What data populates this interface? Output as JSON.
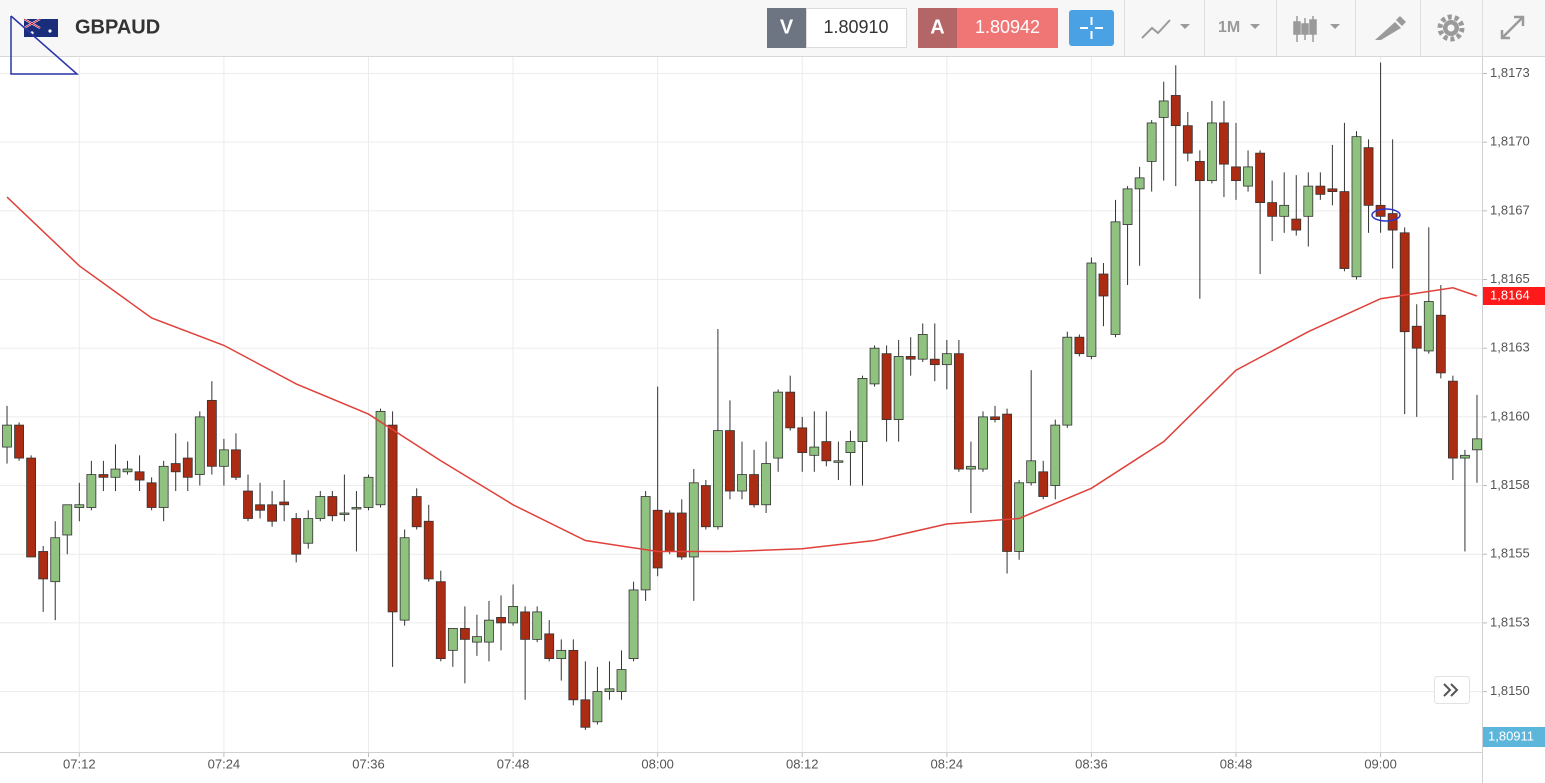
{
  "header": {
    "symbol": "GBPAUD",
    "sell_label": "V",
    "sell_price": "1.80910",
    "buy_label": "A",
    "buy_price": "1.80942",
    "timeframe": "1M"
  },
  "chart_data": {
    "type": "candlestick",
    "x": [
      "07:06",
      "07:07",
      "07:08",
      "07:09",
      "07:10",
      "07:11",
      "07:12",
      "07:13",
      "07:14",
      "07:15",
      "07:16",
      "07:17",
      "07:18",
      "07:19",
      "07:20",
      "07:21",
      "07:22",
      "07:23",
      "07:24",
      "07:25",
      "07:26",
      "07:27",
      "07:28",
      "07:29",
      "07:30",
      "07:31",
      "07:32",
      "07:33",
      "07:34",
      "07:35",
      "07:36",
      "07:37",
      "07:38",
      "07:39",
      "07:40",
      "07:41",
      "07:42",
      "07:43",
      "07:44",
      "07:45",
      "07:46",
      "07:47",
      "07:48",
      "07:49",
      "07:50",
      "07:51",
      "07:52",
      "07:53",
      "07:54",
      "07:55",
      "07:56",
      "07:57",
      "07:58",
      "07:59",
      "08:00",
      "08:01",
      "08:02",
      "08:03",
      "08:04",
      "08:05",
      "08:06",
      "08:07",
      "08:08",
      "08:09",
      "08:10",
      "08:11",
      "08:12",
      "08:13",
      "08:14",
      "08:15",
      "08:16",
      "08:17",
      "08:18",
      "08:19",
      "08:20",
      "08:21",
      "08:22",
      "08:23",
      "08:24",
      "08:25",
      "08:26",
      "08:27",
      "08:28",
      "08:29",
      "08:30",
      "08:31",
      "08:32",
      "08:33",
      "08:34",
      "08:35",
      "08:36",
      "08:37",
      "08:38",
      "08:39",
      "08:40",
      "08:41",
      "08:42",
      "08:43",
      "08:44",
      "08:45",
      "08:46",
      "08:47",
      "08:48",
      "08:49",
      "08:50",
      "08:51",
      "08:52",
      "08:53",
      "08:54",
      "08:55",
      "08:56",
      "08:57",
      "08:58",
      "08:59",
      "09:00",
      "09:01",
      "09:02",
      "09:03",
      "09:04",
      "09:05",
      "09:06",
      "09:07",
      "09:08"
    ],
    "open": [
      1.81589,
      1.81597,
      1.81585,
      1.81551,
      1.8154,
      1.81557,
      1.81567,
      1.81567,
      1.81579,
      1.81578,
      1.8158,
      1.8158,
      1.81576,
      1.81567,
      1.81583,
      1.81585,
      1.81579,
      1.81606,
      1.81582,
      1.81588,
      1.81573,
      1.81568,
      1.81568,
      1.81569,
      1.81563,
      1.81554,
      1.81563,
      1.81571,
      1.81565,
      1.81567,
      1.81567,
      1.81568,
      1.81597,
      1.81526,
      1.81571,
      1.81562,
      1.8154,
      1.81515,
      1.81523,
      1.81518,
      1.81518,
      1.81527,
      1.81525,
      1.81529,
      1.81519,
      1.81521,
      1.81512,
      1.81515,
      1.81497,
      1.81489,
      1.815,
      1.815,
      1.81512,
      1.81537,
      1.81566,
      1.81565,
      1.81565,
      1.81549,
      1.81575,
      1.8156,
      1.81595,
      1.81573,
      1.81579,
      1.81568,
      1.81585,
      1.81609,
      1.81596,
      1.81586,
      1.81591,
      1.81584,
      1.81587,
      1.81591,
      1.81612,
      1.81623,
      1.81599,
      1.81622,
      1.81621,
      1.81621,
      1.81619,
      1.81623,
      1.81581,
      1.81581,
      1.816,
      1.81601,
      1.81551,
      1.81576,
      1.8158,
      1.81575,
      1.81597,
      1.81629,
      1.81622,
      1.81652,
      1.8163,
      1.8167,
      1.81683,
      1.81693,
      1.81709,
      1.81717,
      1.81706,
      1.81693,
      1.81686,
      1.81707,
      1.81691,
      1.81684,
      1.81696,
      1.81678,
      1.81673,
      1.81672,
      1.81673,
      1.81684,
      1.81683,
      1.81682,
      1.81651,
      1.81698,
      1.81677,
      1.81674,
      1.81667,
      1.81633,
      1.81624,
      1.81637,
      1.81613,
      1.81585,
      1.81588
    ],
    "high": [
      1.81604,
      1.81598,
      1.81586,
      1.81553,
      1.81562,
      1.81568,
      1.81576,
      1.81584,
      1.81584,
      1.8159,
      1.81584,
      1.81586,
      1.81578,
      1.81584,
      1.81594,
      1.81591,
      1.81602,
      1.81613,
      1.81592,
      1.81594,
      1.81579,
      1.81576,
      1.81573,
      1.81577,
      1.81565,
      1.81566,
      1.81573,
      1.81573,
      1.81579,
      1.81573,
      1.81579,
      1.81603,
      1.81602,
      1.81559,
      1.81574,
      1.81568,
      1.81544,
      1.81523,
      1.81531,
      1.81528,
      1.81533,
      1.81535,
      1.81539,
      1.81531,
      1.81531,
      1.81526,
      1.81519,
      1.81519,
      1.81511,
      1.81509,
      1.81511,
      1.81515,
      1.8154,
      1.81573,
      1.81611,
      1.81566,
      1.8157,
      1.81581,
      1.81577,
      1.81632,
      1.81606,
      1.81591,
      1.81588,
      1.81591,
      1.8161,
      1.81615,
      1.816,
      1.81602,
      1.81602,
      1.81591,
      1.81595,
      1.81615,
      1.81626,
      1.81626,
      1.81628,
      1.81629,
      1.81634,
      1.81634,
      1.81628,
      1.81628,
      1.81591,
      1.81602,
      1.81604,
      1.81603,
      1.81577,
      1.81617,
      1.81584,
      1.81599,
      1.81631,
      1.8163,
      1.81658,
      1.81656,
      1.81679,
      1.81684,
      1.81691,
      1.81708,
      1.81722,
      1.81728,
      1.81711,
      1.81697,
      1.81715,
      1.81715,
      1.81707,
      1.81697,
      1.81697,
      1.81686,
      1.81689,
      1.81688,
      1.81689,
      1.81689,
      1.81699,
      1.81707,
      1.81704,
      1.81701,
      1.81729,
      1.81701,
      1.81669,
      1.81641,
      1.81669,
      1.81648,
      1.81615,
      1.81588,
      1.81608
    ],
    "low": [
      1.81583,
      1.81584,
      1.81549,
      1.81529,
      1.81526,
      1.8155,
      1.81562,
      1.81566,
      1.81573,
      1.81573,
      1.81579,
      1.81573,
      1.81566,
      1.81562,
      1.81573,
      1.81573,
      1.81575,
      1.81579,
      1.81575,
      1.81577,
      1.81562,
      1.81563,
      1.8156,
      1.81562,
      1.81547,
      1.81552,
      1.81562,
      1.81562,
      1.81562,
      1.81551,
      1.81566,
      1.81567,
      1.81509,
      1.81524,
      1.81559,
      1.8154,
      1.81511,
      1.81509,
      1.81503,
      1.81513,
      1.81511,
      1.81515,
      1.81524,
      1.81497,
      1.81518,
      1.81511,
      1.81504,
      1.81495,
      1.81486,
      1.81488,
      1.81497,
      1.81497,
      1.81511,
      1.81533,
      1.81542,
      1.8155,
      1.81548,
      1.81533,
      1.81559,
      1.81559,
      1.8157,
      1.8157,
      1.81567,
      1.81565,
      1.8158,
      1.81595,
      1.8158,
      1.8158,
      1.81582,
      1.81577,
      1.81575,
      1.81575,
      1.81611,
      1.81591,
      1.81591,
      1.81615,
      1.8162,
      1.81613,
      1.8161,
      1.8158,
      1.81565,
      1.8158,
      1.81598,
      1.81543,
      1.81548,
      1.81575,
      1.8157,
      1.8157,
      1.81596,
      1.81622,
      1.81621,
      1.81633,
      1.81629,
      1.81648,
      1.81655,
      1.81682,
      1.81686,
      1.81684,
      1.81693,
      1.81643,
      1.81685,
      1.8168,
      1.81679,
      1.81682,
      1.81652,
      1.81664,
      1.81667,
      1.81666,
      1.81662,
      1.81679,
      1.81677,
      1.81653,
      1.8165,
      1.81667,
      1.81667,
      1.81654,
      1.81601,
      1.816,
      1.81623,
      1.81614,
      1.81577,
      1.81551,
      1.81576
    ],
    "close": [
      1.81597,
      1.81585,
      1.81549,
      1.81541,
      1.81556,
      1.81568,
      1.81568,
      1.81579,
      1.81578,
      1.81581,
      1.81581,
      1.81577,
      1.81567,
      1.81582,
      1.8158,
      1.81578,
      1.816,
      1.81582,
      1.81588,
      1.81578,
      1.81563,
      1.81566,
      1.81562,
      1.81568,
      1.8155,
      1.81563,
      1.81571,
      1.81564,
      1.81565,
      1.81567,
      1.81578,
      1.81602,
      1.81529,
      1.81556,
      1.8156,
      1.81541,
      1.81512,
      1.81523,
      1.81519,
      1.8152,
      1.81526,
      1.81525,
      1.81531,
      1.81519,
      1.81529,
      1.81512,
      1.81515,
      1.81497,
      1.81487,
      1.815,
      1.81501,
      1.81508,
      1.81537,
      1.81571,
      1.81545,
      1.81551,
      1.81549,
      1.81576,
      1.8156,
      1.81595,
      1.81573,
      1.81579,
      1.81568,
      1.81583,
      1.81609,
      1.81596,
      1.81587,
      1.81589,
      1.81584,
      1.81584,
      1.81591,
      1.81614,
      1.81625,
      1.81599,
      1.81622,
      1.81621,
      1.8163,
      1.81619,
      1.81623,
      1.81581,
      1.81582,
      1.816,
      1.81599,
      1.81551,
      1.81576,
      1.81584,
      1.81571,
      1.81597,
      1.81629,
      1.81623,
      1.81656,
      1.81644,
      1.81671,
      1.81683,
      1.81687,
      1.81707,
      1.81715,
      1.81706,
      1.81696,
      1.81686,
      1.81707,
      1.81692,
      1.81686,
      1.81691,
      1.81678,
      1.81673,
      1.81677,
      1.81668,
      1.81684,
      1.81681,
      1.81682,
      1.81654,
      1.81702,
      1.81677,
      1.81673,
      1.81668,
      1.81631,
      1.81625,
      1.81642,
      1.81616,
      1.81585,
      1.81586,
      1.81592
    ],
    "up_color": "#8fc27f",
    "down_color": "#ab2c12",
    "moving_average": {
      "color": "#e0403a",
      "x": [
        "07:06",
        "07:12",
        "07:18",
        "07:24",
        "07:30",
        "07:36",
        "07:42",
        "07:48",
        "07:54",
        "08:00",
        "08:06",
        "08:12",
        "08:18",
        "08:24",
        "08:30",
        "08:36",
        "08:42",
        "08:48",
        "08:54",
        "09:00",
        "09:06",
        "09:08"
      ],
      "values": [
        1.8168,
        1.81655,
        1.81636,
        1.81626,
        1.81612,
        1.81601,
        1.81584,
        1.81568,
        1.81555,
        1.81551,
        1.81551,
        1.81552,
        1.81555,
        1.81561,
        1.81563,
        1.81574,
        1.81591,
        1.81617,
        1.81631,
        1.81643,
        1.81647,
        1.81644
      ],
      "value_label": "1,8164"
    },
    "price_label": "1,80911",
    "xlim": [
      "07:05:25",
      "09:08:25"
    ],
    "xticks": [
      "07:12",
      "07:24",
      "07:36",
      "07:48",
      "08:00",
      "08:12",
      "08:24",
      "08:36",
      "08:48",
      "09:00"
    ],
    "ylim": [
      1.81478,
      1.81731
    ],
    "yticks": [
      {
        "value": 1.815,
        "label": "1,8150"
      },
      {
        "value": 1.81525,
        "label": "1,8153"
      },
      {
        "value": 1.8155,
        "label": "1,8155"
      },
      {
        "value": 1.81575,
        "label": "1,8158"
      },
      {
        "value": 1.816,
        "label": "1,8160"
      },
      {
        "value": 1.81625,
        "label": "1,8163"
      },
      {
        "value": 1.8165,
        "label": "1,8165"
      },
      {
        "value": 1.81675,
        "label": "1,8167"
      },
      {
        "value": 1.817,
        "label": "1,8170"
      },
      {
        "value": 1.81725,
        "label": "1,8173"
      }
    ],
    "grid": true
  }
}
